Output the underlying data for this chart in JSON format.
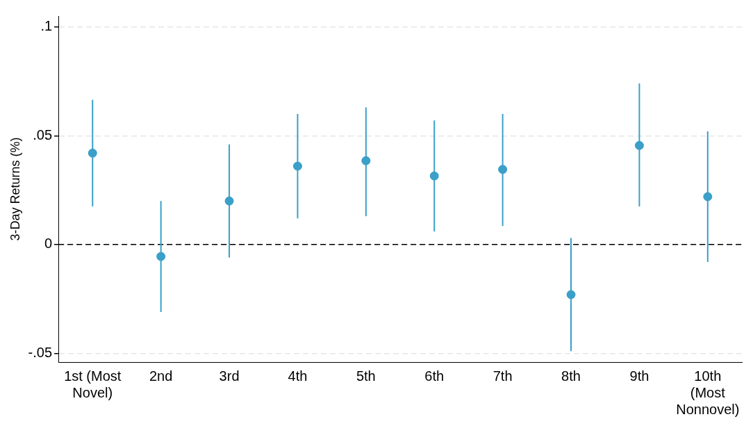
{
  "chart_data": {
    "type": "scatter",
    "ylabel": "3-Day Returns (%)",
    "categories": [
      "1st (Most Novel)",
      "2nd",
      "3rd",
      "4th",
      "5th",
      "6th",
      "7th",
      "8th",
      "9th",
      "10th (Most Nonnovel)"
    ],
    "series": [
      {
        "color": "#3a9fc9",
        "values": [
          0.042,
          -0.0055,
          0.02,
          0.036,
          0.0385,
          0.0315,
          0.0345,
          -0.023,
          0.0455,
          0.022
        ],
        "errors": [
          [
            0.0175,
            0.0665
          ],
          [
            -0.031,
            0.02
          ],
          [
            -0.006,
            0.046
          ],
          [
            0.012,
            0.06
          ],
          [
            0.013,
            0.063
          ],
          [
            0.006,
            0.057
          ],
          [
            0.0085,
            0.06
          ],
          [
            -0.049,
            0.003
          ],
          [
            0.0175,
            0.074
          ],
          [
            -0.008,
            0.052
          ]
        ]
      }
    ],
    "ylim": [
      -0.054,
      0.105
    ],
    "yticks": [
      {
        "value": -0.05,
        "label": "-.05"
      },
      {
        "value": 0,
        "label": "0"
      },
      {
        "value": 0.05,
        "label": ".05"
      },
      {
        "value": 0.1,
        "label": ".1"
      }
    ],
    "ref_lines": [
      {
        "axis": "y",
        "value": 0,
        "color": "#000000",
        "line_style": "dashed"
      }
    ],
    "grid": "y",
    "legend": false,
    "marker": "circle"
  }
}
